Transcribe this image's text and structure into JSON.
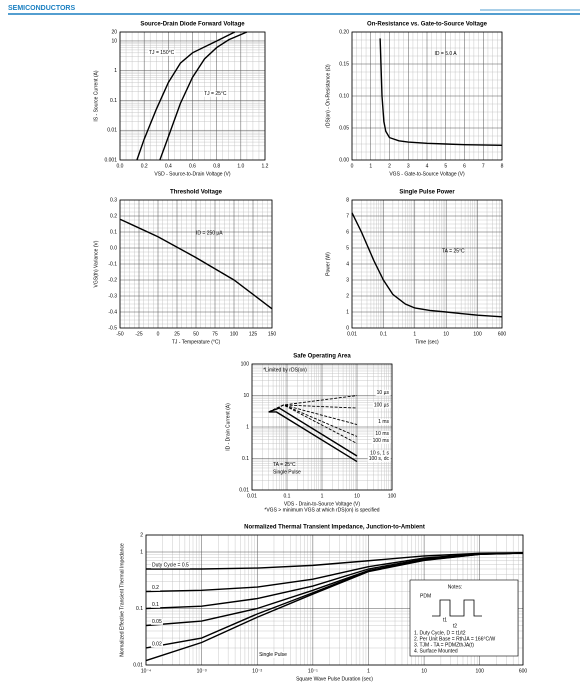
{
  "header": {
    "brand": "SEMICONDUCTORS"
  },
  "chart_data": [
    {
      "type": "line",
      "title": "Source-Drain Diode Forward Voltage",
      "x_label": "VSD - Source-to-Drain Voltage (V)",
      "y_label": "IS - Source Current (A)",
      "xlim": [
        0,
        1.2
      ],
      "ylim": [
        0.001,
        20
      ],
      "ylog": true,
      "grid": true,
      "xticks": [
        {
          "value": 0,
          "label": "0.0"
        },
        0.2,
        0.4,
        0.6,
        0.8,
        {
          "value": 1,
          "label": "1.0"
        },
        1.2
      ],
      "yticks": [
        0.001,
        0.01,
        0.1,
        1,
        10,
        20
      ],
      "series": [
        {
          "name": "TJ = 150°C",
          "color": "#000000",
          "x": [
            0.14,
            0.2,
            0.3,
            0.4,
            0.5,
            0.6,
            0.8,
            0.95
          ],
          "values": [
            0.001,
            0.005,
            0.05,
            0.4,
            1.8,
            4,
            10,
            20
          ]
        },
        {
          "name": "TJ = 25°C",
          "color": "#000000",
          "x": [
            0.33,
            0.4,
            0.5,
            0.6,
            0.7,
            0.8,
            0.9,
            1.05
          ],
          "values": [
            0.001,
            0.006,
            0.08,
            0.6,
            2.5,
            6,
            11,
            20
          ]
        }
      ]
    },
    {
      "type": "line",
      "title": "On-Resistance vs. Gate-to-Source Voltage",
      "x_label": "VGS - Gate-to-Source Voltage (V)",
      "y_label": "rDS(on) - On-Resistance (Ω)",
      "xlim": [
        0,
        8
      ],
      "ylim": [
        0,
        0.2
      ],
      "grid": true,
      "xticks": [
        0,
        1,
        2,
        3,
        4,
        5,
        6,
        7,
        8
      ],
      "yticks": [
        {
          "value": 0,
          "label": "0.00"
        },
        0.05,
        {
          "value": 0.1,
          "label": "0.10"
        },
        0.15,
        {
          "value": 0.2,
          "label": "0.20"
        }
      ],
      "annotations": [
        "ID = 5.0 A"
      ],
      "series": [
        {
          "color": "#000000",
          "x": [
            1.5,
            1.6,
            1.7,
            1.8,
            2,
            2.5,
            3,
            4,
            5,
            6,
            8
          ],
          "values": [
            0.19,
            0.1,
            0.06,
            0.045,
            0.035,
            0.03,
            0.028,
            0.026,
            0.025,
            0.024,
            0.023
          ]
        }
      ]
    },
    {
      "type": "line",
      "title": "Threshold Voltage",
      "x_label": "TJ - Temperature (°C)",
      "y_label": "VGS(th) Variance (V)",
      "xlim": [
        -50,
        150
      ],
      "ylim": [
        -0.5,
        0.3
      ],
      "grid": true,
      "xticks": [
        -50,
        -25,
        0,
        25,
        50,
        75,
        100,
        125,
        150
      ],
      "yticks": [
        -0.5,
        -0.4,
        -0.3,
        -0.2,
        -0.1,
        {
          "value": 0,
          "label": "0.0"
        },
        0.1,
        0.2,
        0.3
      ],
      "annotations": [
        "ID = 250 µA"
      ],
      "series": [
        {
          "color": "#000000",
          "x": [
            -50,
            0,
            50,
            100,
            150
          ],
          "values": [
            0.18,
            0.07,
            -0.06,
            -0.2,
            -0.38
          ]
        }
      ]
    },
    {
      "type": "line",
      "title": "Single Pulse Power",
      "x_label": "Time (sec)",
      "y_label": "Power (W)",
      "xlim": [
        0.01,
        600
      ],
      "xlog": true,
      "ylim": [
        0,
        8
      ],
      "grid": true,
      "xticks": [
        0.01,
        0.1,
        1,
        10,
        100,
        600
      ],
      "yticks": [
        0,
        1,
        2,
        3,
        4,
        5,
        6,
        7,
        8
      ],
      "annotations": [
        "TA = 25°C"
      ],
      "series": [
        {
          "color": "#000000",
          "x": [
            0.01,
            0.02,
            0.05,
            0.1,
            0.2,
            0.5,
            1,
            3,
            10,
            30,
            100,
            600
          ],
          "values": [
            7.2,
            6,
            4.2,
            3,
            2.1,
            1.5,
            1.25,
            1.1,
            1,
            0.9,
            0.8,
            0.7
          ]
        }
      ]
    },
    {
      "type": "line",
      "title": "Safe Operating Area",
      "x_label": "VDS - Drain-to-Source Voltage (V)",
      "y_label": "ID - Drain Current (A)",
      "footnote": "*VGS > minimum VGS at which rDS(on) is specified",
      "xlim": [
        0.01,
        100
      ],
      "xlog": true,
      "ylim": [
        0.01,
        100
      ],
      "ylog": true,
      "grid": true,
      "xticks": [
        0.01,
        0.1,
        1,
        10,
        100
      ],
      "yticks": [
        0.01,
        0.1,
        1,
        10,
        100
      ],
      "annotations": [
        "*Limited by rDS(on)",
        "TA = 25°C",
        "Single Pulse"
      ],
      "series": [
        {
          "name": "10 µs",
          "color": "#000000",
          "dash": true,
          "x": [
            0.03,
            0.08,
            10
          ],
          "values": [
            3,
            5,
            10
          ]
        },
        {
          "name": "100 µs",
          "color": "#000000",
          "dash": true,
          "x": [
            0.03,
            0.08,
            10
          ],
          "values": [
            3,
            5,
            4
          ]
        },
        {
          "name": "1 ms",
          "color": "#000000",
          "dash": true,
          "x": [
            0.03,
            0.08,
            10
          ],
          "values": [
            3,
            5,
            1.2
          ]
        },
        {
          "name": "10 ms",
          "color": "#000000",
          "dash": true,
          "x": [
            0.03,
            0.08,
            10
          ],
          "values": [
            3,
            5,
            0.5
          ]
        },
        {
          "name": "100 ms",
          "color": "#000000",
          "dash": true,
          "x": [
            0.03,
            0.08,
            10
          ],
          "values": [
            3,
            5,
            0.3
          ]
        },
        {
          "name": "10 s, 1 s",
          "color": "#000000",
          "x": [
            0.03,
            0.06,
            10
          ],
          "values": [
            3,
            4,
            0.12
          ]
        },
        {
          "name": "100 s, dc",
          "color": "#000000",
          "x": [
            0.03,
            0.05,
            10
          ],
          "values": [
            3,
            3,
            0.08
          ]
        }
      ]
    },
    {
      "type": "line",
      "title": "Normalized Thermal Transient Impedance, Junction-to-Ambient",
      "x_label": "Square Wave Pulse Duration (sec)",
      "y_label": "Normalized Effective Transient Thermal Impedance",
      "xlim": [
        0.0001,
        600
      ],
      "xlog": true,
      "ylim": [
        0.01,
        2
      ],
      "ylog": true,
      "grid": true,
      "xticks": [
        {
          "value": 0.0001,
          "label": "10⁻⁴"
        },
        {
          "value": 0.001,
          "label": "10⁻³"
        },
        {
          "value": 0.01,
          "label": "10⁻²"
        },
        {
          "value": 0.1,
          "label": "10⁻¹"
        },
        1,
        10,
        100,
        600
      ],
      "yticks": [
        0.01,
        0.1,
        1,
        2
      ],
      "notes": [
        "Notes:",
        "PDM",
        "t1",
        "t2",
        "1. Duty Cycle, D = t1/t2",
        "2. Per Unit Base = RthJA = 166°C/W",
        "3. TJM - TA = PDMZthJA(t)",
        "4. Surface Mounted"
      ],
      "series": [
        {
          "name": "Duty Cycle = 0.5",
          "color": "#000000",
          "x": [
            0.0001,
            0.001,
            0.01,
            0.1,
            1,
            10,
            100,
            600
          ],
          "values": [
            0.5,
            0.5,
            0.52,
            0.58,
            0.7,
            0.85,
            0.95,
            0.97
          ]
        },
        {
          "name": "0.2",
          "color": "#000000",
          "x": [
            0.0001,
            0.001,
            0.01,
            0.1,
            1,
            10,
            100,
            600
          ],
          "values": [
            0.2,
            0.21,
            0.24,
            0.33,
            0.55,
            0.78,
            0.93,
            0.96
          ]
        },
        {
          "name": "0.1",
          "color": "#000000",
          "x": [
            0.0001,
            0.001,
            0.01,
            0.1,
            1,
            10,
            100,
            600
          ],
          "values": [
            0.1,
            0.11,
            0.15,
            0.25,
            0.5,
            0.75,
            0.92,
            0.96
          ]
        },
        {
          "name": "0.05",
          "color": "#000000",
          "x": [
            0.0001,
            0.001,
            0.01,
            0.1,
            1,
            10,
            100,
            600
          ],
          "values": [
            0.05,
            0.06,
            0.1,
            0.21,
            0.47,
            0.73,
            0.92,
            0.96
          ]
        },
        {
          "name": "0.02",
          "color": "#000000",
          "x": [
            0.0001,
            0.001,
            0.01,
            0.1,
            1,
            10,
            100,
            600
          ],
          "values": [
            0.02,
            0.03,
            0.08,
            0.19,
            0.46,
            0.72,
            0.91,
            0.96
          ]
        },
        {
          "name": "Single Pulse",
          "color": "#000000",
          "x": [
            0.0001,
            0.001,
            0.01,
            0.1,
            1,
            10,
            100,
            600
          ],
          "values": [
            0.012,
            0.025,
            0.07,
            0.18,
            0.45,
            0.71,
            0.91,
            0.96
          ]
        }
      ]
    }
  ]
}
